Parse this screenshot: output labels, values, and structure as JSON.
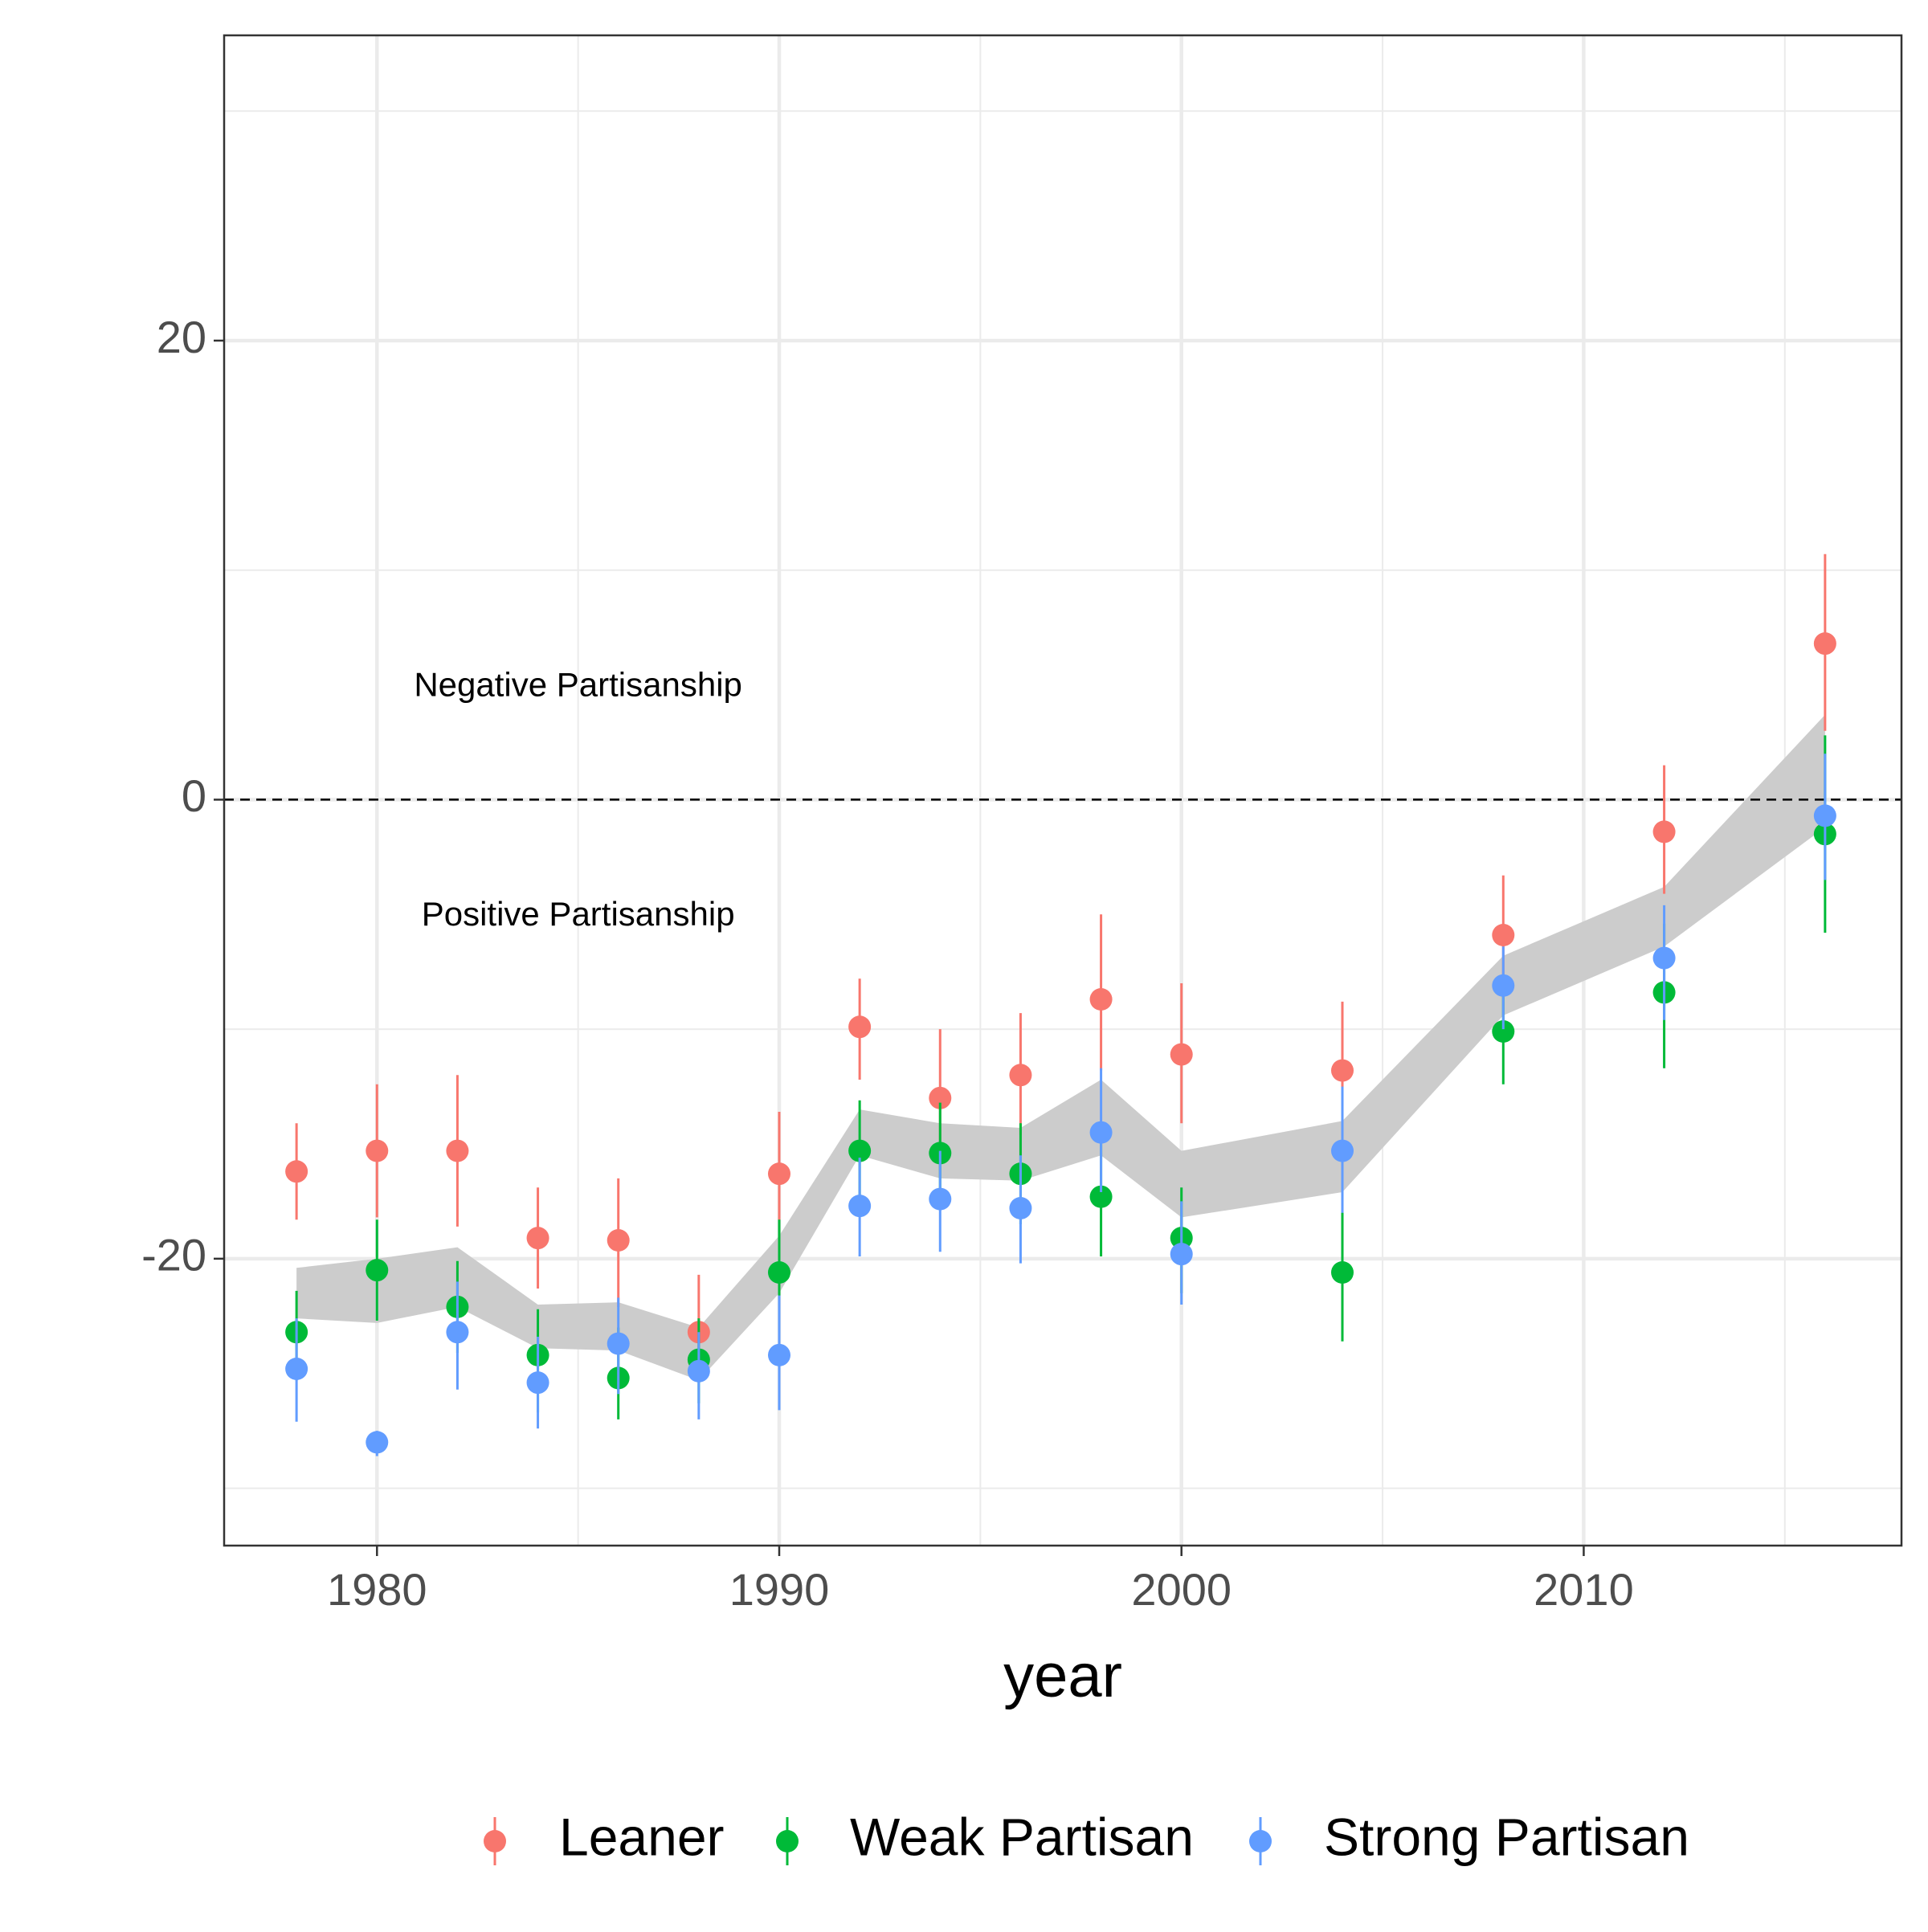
{
  "chart_data": {
    "type": "scatter",
    "xlabel": "year",
    "ylabel": "",
    "xlim": [
      1976.2,
      2017.9
    ],
    "ylim": [
      -32.5,
      33.3
    ],
    "x_ticks": [
      1980,
      1990,
      2000,
      2010
    ],
    "x_tick_labels": [
      "1980",
      "1990",
      "2000",
      "2010"
    ],
    "y_ticks": [
      -20,
      0,
      20
    ],
    "y_tick_labels": [
      "-20",
      "0",
      "20"
    ],
    "grid": true,
    "reference_line": {
      "y": 0,
      "style": "dashed"
    },
    "annotations": [
      {
        "text": "Negative Partisanship",
        "x": 1985,
        "y": 4.9
      },
      {
        "text": "Positive Partisanship",
        "x": 1985,
        "y": -5.1
      }
    ],
    "legend": {
      "position": "bottom"
    },
    "colors": {
      "Leaner": "#F8766D",
      "Weak Partisan": "#00BA38",
      "Strong Partisan": "#619CFF",
      "ribbon": "#cccccc"
    },
    "ribbon": {
      "x": [
        1978,
        1980,
        1982,
        1984,
        1986,
        1988,
        1990,
        1992,
        1994,
        1996,
        1998,
        2000,
        2004,
        2008,
        2012,
        2016
      ],
      "lower": [
        -22.6,
        -22.8,
        -22.1,
        -23.9,
        -24.0,
        -25.3,
        -21.5,
        -15.5,
        -16.5,
        -16.6,
        -15.5,
        -18.2,
        -17.1,
        -9.4,
        -6.4,
        -1.2
      ],
      "upper": [
        -20.4,
        -20.0,
        -19.5,
        -22.0,
        -21.9,
        -23.0,
        -19.0,
        -13.5,
        -14.1,
        -14.3,
        -12.2,
        -15.3,
        -14.0,
        -6.8,
        -3.8,
        3.7
      ]
    },
    "series": [
      {
        "name": "Leaner",
        "x": [
          1978,
          1980,
          1982,
          1984,
          1986,
          1988,
          1990,
          1992,
          1994,
          1996,
          1998,
          2000,
          2004,
          2008,
          2012,
          2016
        ],
        "y": [
          -16.2,
          -15.3,
          -15.3,
          -19.1,
          -19.2,
          -23.2,
          -16.3,
          -9.9,
          -13.0,
          -12.0,
          -8.7,
          -11.1,
          -11.8,
          -5.9,
          -1.4,
          6.8
        ],
        "lower": [
          -18.3,
          -18.2,
          -18.6,
          -21.3,
          -22.1,
          -25.0,
          -18.9,
          -12.2,
          -15.1,
          -14.6,
          -11.8,
          -14.1,
          -14.9,
          -8.2,
          -4.1,
          3.0
        ],
        "upper": [
          -14.1,
          -12.4,
          -12.0,
          -16.9,
          -16.5,
          -20.7,
          -13.6,
          -7.8,
          -10.0,
          -9.3,
          -5.0,
          -8.0,
          -8.8,
          -3.3,
          1.5,
          10.7
        ]
      },
      {
        "name": "Weak Partisan",
        "x": [
          1978,
          1980,
          1982,
          1984,
          1986,
          1988,
          1990,
          1992,
          1994,
          1996,
          1998,
          2000,
          2004,
          2008,
          2012,
          2016
        ],
        "y": [
          -23.2,
          -20.5,
          -22.1,
          -24.2,
          -25.2,
          -24.4,
          -20.6,
          -15.3,
          -15.4,
          -16.3,
          -17.3,
          -19.1,
          -20.6,
          -10.1,
          -8.4,
          -1.5
        ],
        "lower": [
          -25.3,
          -22.7,
          -24.1,
          -26.7,
          -27.0,
          -26.3,
          -23.2,
          -17.8,
          -17.5,
          -18.5,
          -19.9,
          -21.5,
          -23.6,
          -12.4,
          -11.7,
          -5.8
        ],
        "upper": [
          -21.4,
          -18.3,
          -20.1,
          -22.2,
          -23.0,
          -22.6,
          -18.3,
          -13.1,
          -13.2,
          -14.1,
          -14.8,
          -16.9,
          -17.7,
          -7.6,
          -5.4,
          2.8
        ]
      },
      {
        "name": "Strong Partisan",
        "x": [
          1978,
          1980,
          1982,
          1984,
          1986,
          1988,
          1990,
          1992,
          1994,
          1996,
          1998,
          2000,
          2004,
          2008,
          2012,
          2016
        ],
        "y": [
          -24.8,
          -28.0,
          -23.2,
          -25.4,
          -23.7,
          -24.9,
          -24.2,
          -17.7,
          -17.4,
          -17.8,
          -14.5,
          -19.8,
          -15.3,
          -8.1,
          -6.9,
          -0.7
        ],
        "lower": [
          -27.1,
          -28.6,
          -25.7,
          -27.4,
          -25.9,
          -27.0,
          -26.6,
          -19.9,
          -19.7,
          -20.2,
          -17.1,
          -22.0,
          -18.0,
          -10.0,
          -9.6,
          -3.5
        ],
        "upper": [
          -22.6,
          -27.5,
          -21.0,
          -23.4,
          -21.7,
          -23.2,
          -21.6,
          -15.6,
          -15.3,
          -15.5,
          -11.7,
          -17.5,
          -12.5,
          -6.4,
          -4.6,
          2.0
        ]
      }
    ]
  }
}
